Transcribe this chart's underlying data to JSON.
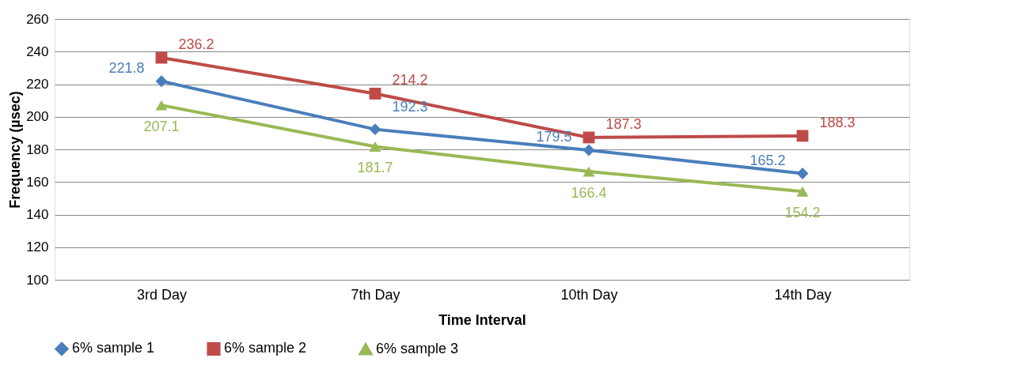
{
  "chart_data": {
    "type": "line",
    "xlabel": "Time Interval",
    "ylabel": "Frequency (µsec)",
    "categories": [
      "3rd Day",
      "7th Day",
      "10th Day",
      "14th Day"
    ],
    "series": [
      {
        "name": "6% sample 1",
        "color": "#4a7ebb",
        "marker": "diamond",
        "values": [
          221.8,
          192.3,
          179.5,
          165.2
        ]
      },
      {
        "name": "6% sample 2",
        "color": "#be4b48",
        "marker": "square",
        "values": [
          236.2,
          214.2,
          187.3,
          188.3
        ]
      },
      {
        "name": "6% sample 3",
        "color": "#98b954",
        "marker": "triangle",
        "values": [
          207.1,
          181.7,
          166.4,
          154.2
        ]
      }
    ],
    "ylim": [
      100,
      260
    ],
    "yticks": [
      100,
      120,
      140,
      160,
      180,
      200,
      220,
      240,
      260
    ],
    "grid": "y",
    "legend": "bottom",
    "data_labels": true,
    "line_style": "solid"
  }
}
